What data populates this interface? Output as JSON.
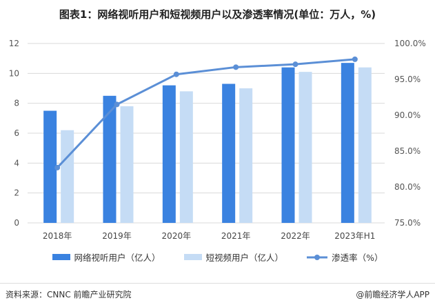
{
  "title": "图表1：网络视听用户和短视频用户以及渗透率情况(单位：万人，%)",
  "chart_data": {
    "type": "bar",
    "title": "图表1：网络视听用户和短视频用户以及渗透率情况(单位：万人，%)",
    "categories": [
      "2018年",
      "2019年",
      "2020年",
      "2021年",
      "2022年",
      "2023年H1"
    ],
    "series": [
      {
        "name": "网络视听用户（亿人）",
        "type": "bar",
        "axis": "left",
        "color": "#3a82e0",
        "values": [
          7.5,
          8.5,
          9.2,
          9.3,
          10.4,
          10.7
        ]
      },
      {
        "name": "短视频用户（亿人）",
        "type": "bar",
        "axis": "left",
        "color": "#c5dcf5",
        "values": [
          6.2,
          7.8,
          8.8,
          9.0,
          10.1,
          10.4
        ]
      },
      {
        "name": "渗透率（%）",
        "type": "line",
        "axis": "right",
        "color": "#5b8fd6",
        "values": [
          82.7,
          91.5,
          95.7,
          96.7,
          97.1,
          97.8
        ]
      }
    ],
    "ylim": [
      0,
      12
    ],
    "yticks": [
      "0",
      "2",
      "4",
      "6",
      "8",
      "10",
      "12"
    ],
    "y2lim": [
      75,
      100
    ],
    "y2ticks": [
      "75.0%",
      "80.0%",
      "85.0%",
      "90.0%",
      "95.0%",
      "100.0%"
    ],
    "grid": true,
    "legend": "bottom"
  },
  "footer": {
    "source": "资料来源：CNNC 前瞻产业研究院",
    "brand": "@前瞻经济学人APP"
  }
}
